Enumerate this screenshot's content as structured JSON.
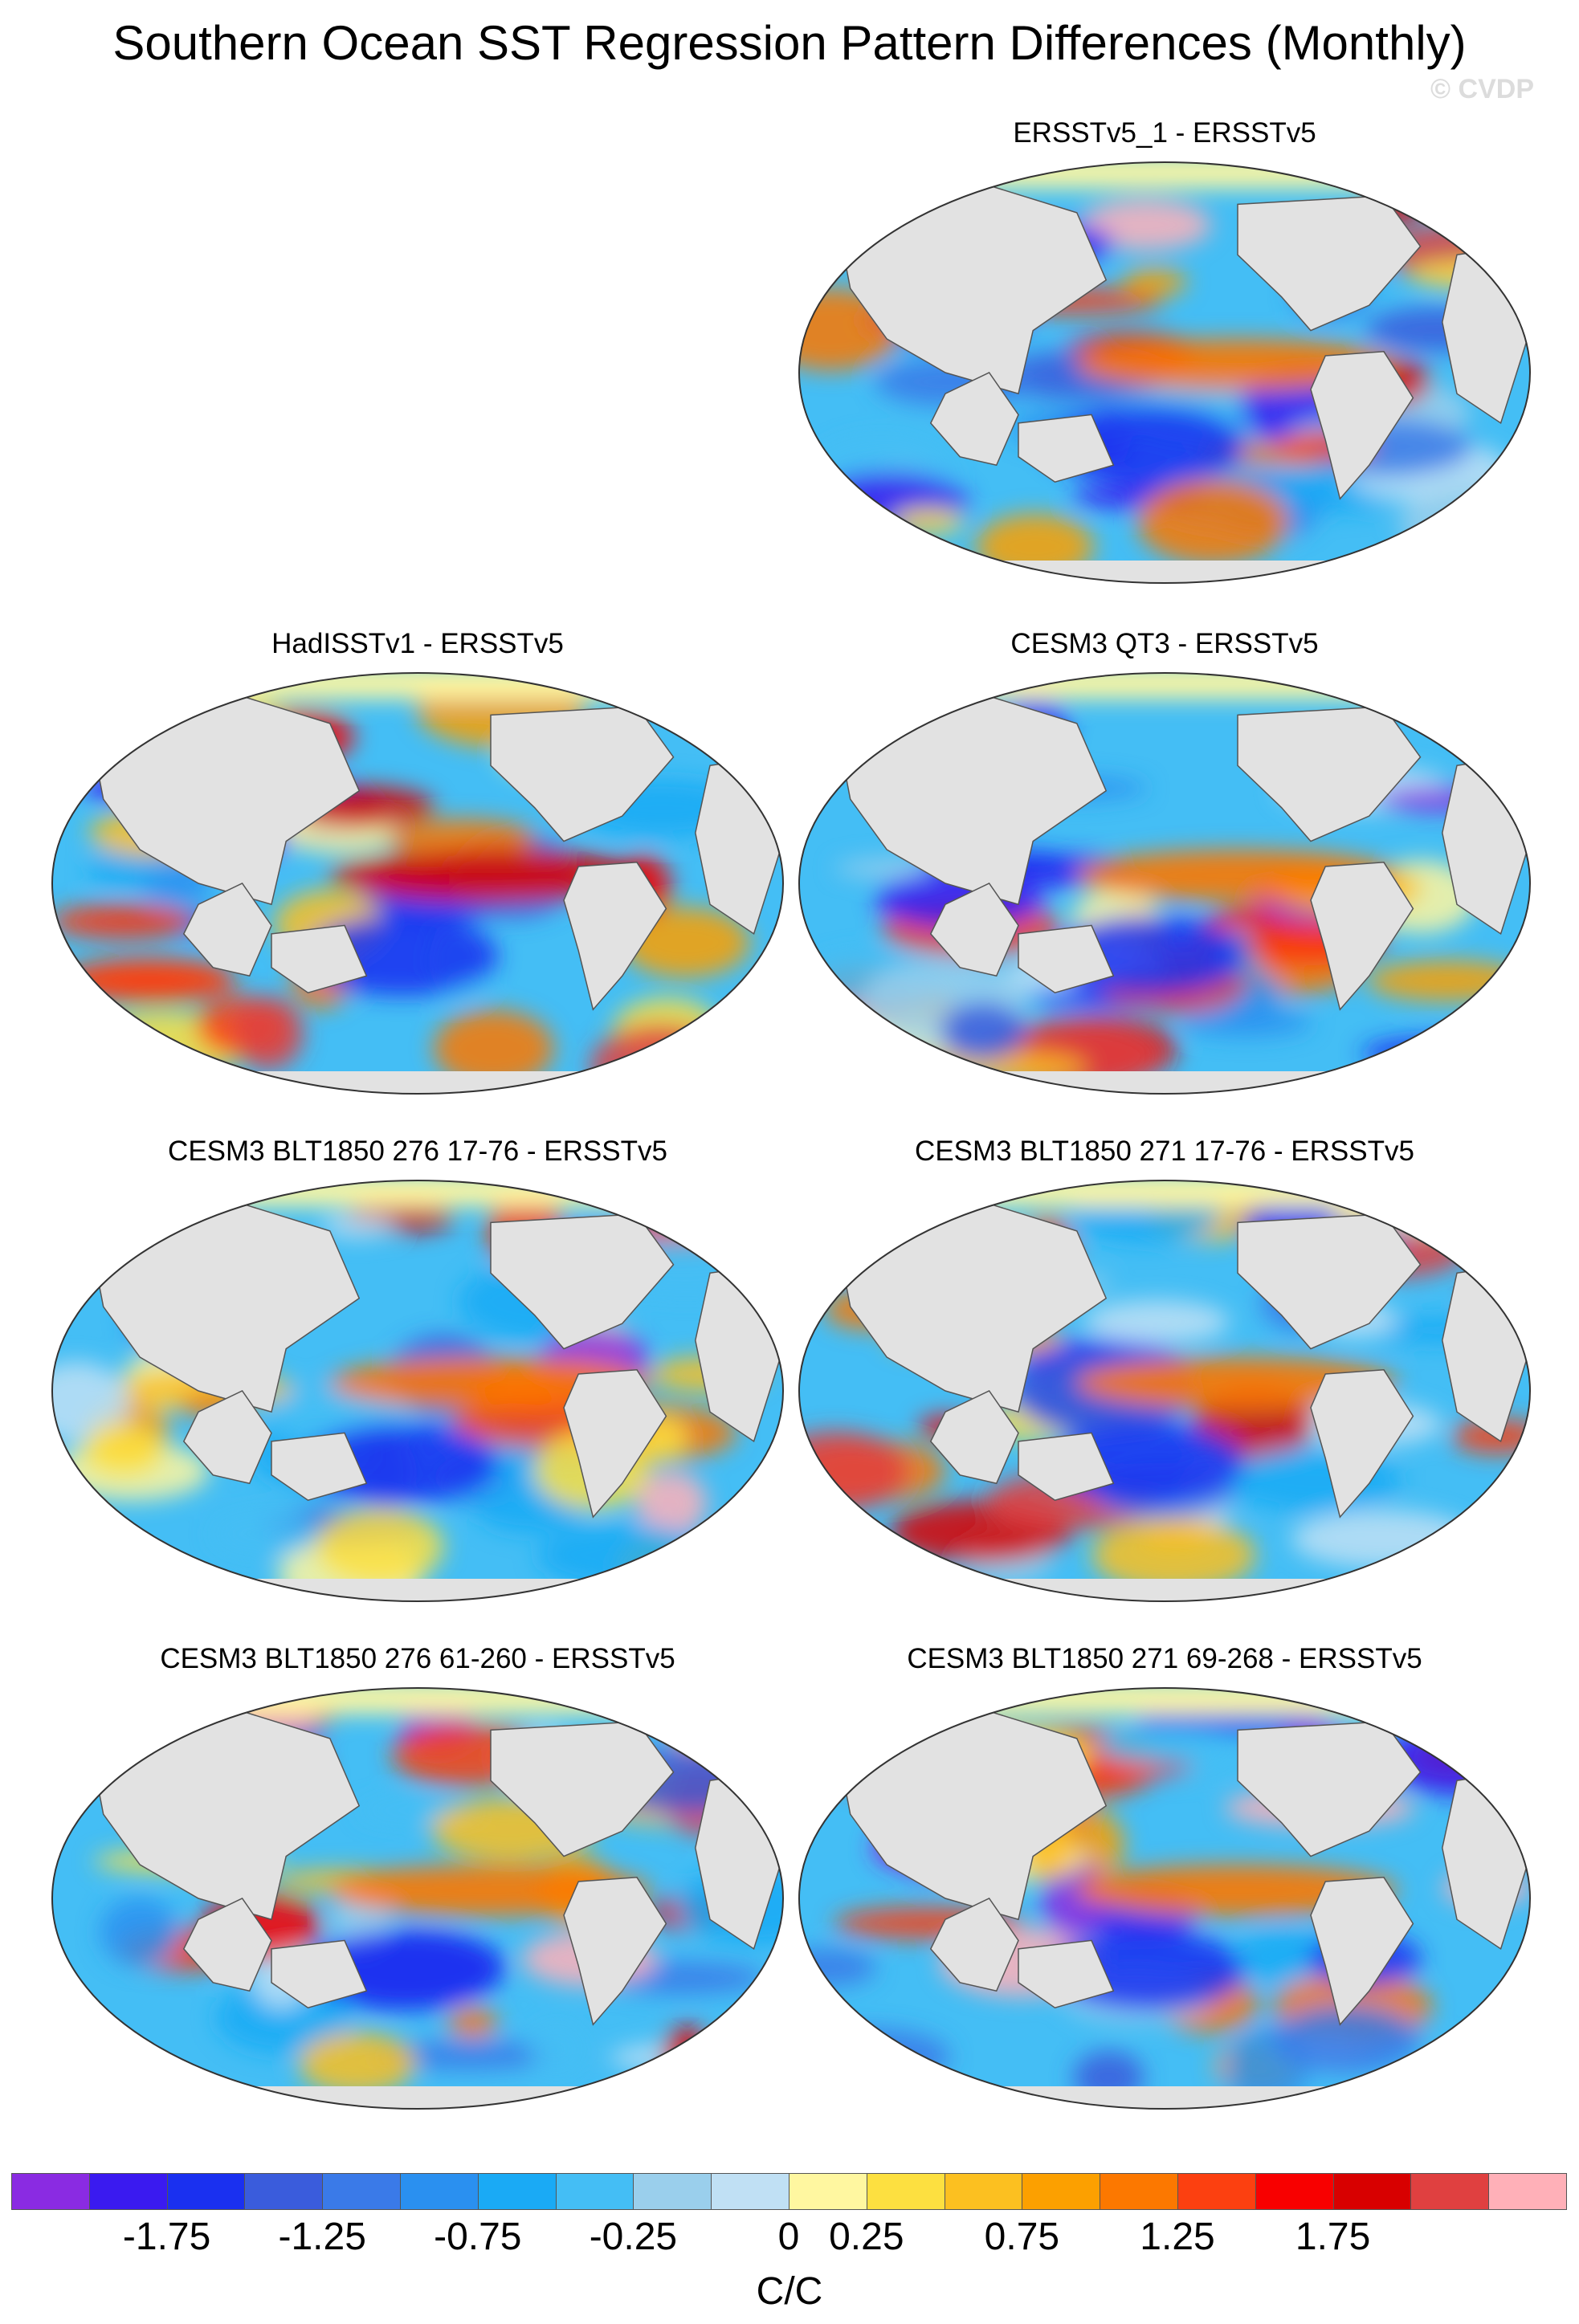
{
  "title": "Southern Ocean SST Regression Pattern Differences (Monthly)",
  "watermark": "© CVDP",
  "projection": "robinson",
  "panels": [
    {
      "id": "p1",
      "title": "ERSSTv5_1 - ERSSTv5"
    },
    {
      "id": "p2",
      "title": "HadISSTv1 - ERSSTv5"
    },
    {
      "id": "p3",
      "title": "CESM3 QT3 - ERSSTv5"
    },
    {
      "id": "p4",
      "title": "CESM3 BLT1850 276 17-76 - ERSSTv5"
    },
    {
      "id": "p5",
      "title": "CESM3 BLT1850 271 17-76 - ERSSTv5"
    },
    {
      "id": "p6",
      "title": "CESM3 BLT1850 276 61-260 - ERSSTv5"
    },
    {
      "id": "p7",
      "title": "CESM3 BLT1850 271 69-268 - ERSSTv5"
    }
  ],
  "colorbar": {
    "units": "C/C",
    "colors": [
      "#8a2be2",
      "#3a1af0",
      "#1a30f0",
      "#3a5cdc",
      "#3a7ae8",
      "#2a90f0",
      "#1aaaf5",
      "#44bef5",
      "#9acfec",
      "#c0e0f4",
      "#fff7a0",
      "#fde040",
      "#fcc020",
      "#fca000",
      "#fc7800",
      "#fc4010",
      "#f80000",
      "#d80000",
      "#e04040",
      "#ffb0b8"
    ],
    "labels": [
      "-1.75",
      "-1.25",
      "-0.75",
      "-0.25",
      "0",
      "0.25",
      "0.75",
      "1.25",
      "1.75"
    ]
  },
  "colors": {
    "land": "#e2e2e2",
    "coast": "#555555",
    "neg": "#44bef5",
    "pos": "#fcc020"
  }
}
